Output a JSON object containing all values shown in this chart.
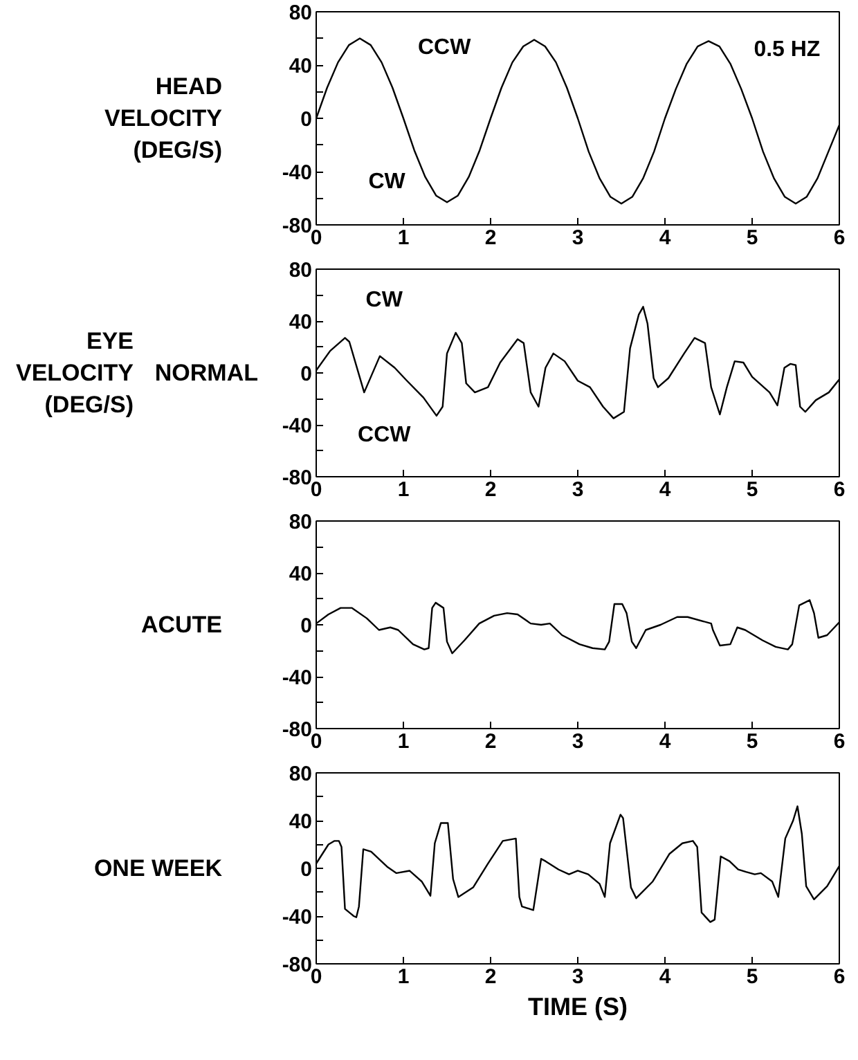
{
  "chart_data": [
    {
      "type": "line",
      "ylabel": "HEAD VELOCITY (DEG/S)",
      "color": "#000000",
      "xlim": [
        0,
        6
      ],
      "ylim": [
        -80,
        80
      ],
      "xticks": [
        0,
        1,
        2,
        3,
        4,
        5,
        6
      ],
      "yticks": [
        -80,
        {
          "value": -60,
          "label": null
        },
        -40,
        {
          "value": -20,
          "label": null
        },
        0,
        {
          "value": 20,
          "label": null
        },
        40,
        {
          "value": 60,
          "label": null
        },
        80
      ],
      "x": [
        0,
        0.125,
        0.25,
        0.375,
        0.5,
        0.625,
        0.75,
        0.875,
        1,
        1.125,
        1.25,
        1.375,
        1.5,
        1.625,
        1.75,
        1.875,
        2,
        2.125,
        2.25,
        2.375,
        2.5,
        2.625,
        2.75,
        2.875,
        3,
        3.125,
        3.25,
        3.375,
        3.5,
        3.625,
        3.75,
        3.875,
        4,
        4.125,
        4.25,
        4.375,
        4.5,
        4.625,
        4.75,
        4.875,
        5,
        5.125,
        5.25,
        5.375,
        5.5,
        5.625,
        5.75,
        5.875,
        6
      ],
      "values": [
        0,
        23,
        42,
        55,
        60,
        55,
        42,
        23,
        0,
        -24,
        -44,
        -58,
        -63,
        -58,
        -44,
        -24,
        0,
        23,
        42,
        54,
        59,
        54,
        42,
        23,
        0,
        -25,
        -45,
        -59,
        -64,
        -59,
        -45,
        -25,
        0,
        22,
        41,
        54,
        58,
        54,
        41,
        22,
        0,
        -25,
        -45,
        -59,
        -64,
        -59,
        -45,
        -25,
        -5
      ],
      "annotations": [
        "CCW",
        "CW",
        "0.5 HZ"
      ]
    },
    {
      "type": "line",
      "ylabel": "EYE VELOCITY (DEG/S)",
      "title": "NORMAL",
      "color": "#000000",
      "xlim": [
        0,
        6
      ],
      "ylim": [
        -80,
        80
      ],
      "xticks": [
        0,
        1,
        2,
        3,
        4,
        5,
        6
      ],
      "yticks": [
        -80,
        {
          "value": -60,
          "label": null
        },
        -40,
        {
          "value": -20,
          "label": null
        },
        0,
        {
          "value": 20,
          "label": null
        },
        40,
        {
          "value": 60,
          "label": null
        },
        80
      ],
      "x": [
        0,
        0.16,
        0.33,
        0.38,
        0.55,
        0.73,
        0.9,
        1.04,
        1.23,
        1.38,
        1.45,
        1.5,
        1.6,
        1.67,
        1.72,
        1.82,
        1.97,
        2.11,
        2.31,
        2.38,
        2.46,
        2.55,
        2.63,
        2.72,
        2.85,
        3.0,
        3.14,
        3.29,
        3.41,
        3.53,
        3.6,
        3.7,
        3.75,
        3.8,
        3.87,
        3.92,
        4.04,
        4.22,
        4.34,
        4.46,
        4.53,
        4.63,
        4.71,
        4.8,
        4.9,
        5.0,
        5.2,
        5.29,
        5.37,
        5.44,
        5.5,
        5.55,
        5.61,
        5.73,
        5.88,
        6
      ],
      "values": [
        2,
        17,
        27,
        24,
        -15,
        13,
        4,
        -6,
        -19,
        -33,
        -26,
        15,
        31,
        23,
        -8,
        -15,
        -11,
        8,
        26,
        23,
        -15,
        -26,
        4,
        15,
        9,
        -6,
        -11,
        -26,
        -35,
        -30,
        19,
        45,
        51,
        38,
        -4,
        -11,
        -4,
        15,
        27,
        23,
        -11,
        -32,
        -11,
        9,
        8,
        -3,
        -15,
        -25,
        4,
        7,
        6,
        -26,
        -30,
        -21,
        -15,
        -5
      ],
      "annotations": [
        "CW",
        "CCW"
      ]
    },
    {
      "type": "line",
      "title": "ACUTE",
      "color": "#000000",
      "xlim": [
        0,
        6
      ],
      "ylim": [
        -80,
        80
      ],
      "xticks": [
        0,
        1,
        2,
        3,
        4,
        5,
        6
      ],
      "yticks": [
        -80,
        {
          "value": -60,
          "label": null
        },
        -40,
        {
          "value": -20,
          "label": null
        },
        0,
        {
          "value": 20,
          "label": null
        },
        40,
        {
          "value": 60,
          "label": null
        },
        80
      ],
      "x": [
        0,
        0.14,
        0.28,
        0.41,
        0.58,
        0.72,
        0.85,
        0.94,
        1.11,
        1.24,
        1.29,
        1.33,
        1.37,
        1.46,
        1.5,
        1.56,
        1.7,
        1.87,
        2.04,
        2.19,
        2.31,
        2.46,
        2.58,
        2.68,
        2.82,
        3.02,
        3.17,
        3.31,
        3.36,
        3.42,
        3.51,
        3.56,
        3.62,
        3.67,
        3.78,
        3.95,
        4.14,
        4.26,
        4.53,
        4.55,
        4.63,
        4.75,
        4.83,
        4.92,
        5.12,
        5.27,
        5.41,
        5.46,
        5.54,
        5.66,
        5.71,
        5.76,
        5.86,
        6
      ],
      "values": [
        1,
        8,
        13,
        13,
        5,
        -4,
        -2,
        -4,
        -15,
        -19,
        -18,
        13,
        17,
        13,
        -13,
        -22,
        -12,
        1,
        7,
        9,
        8,
        1,
        0,
        1,
        -8,
        -15,
        -18,
        -19,
        -13,
        16,
        16,
        9,
        -13,
        -18,
        -4,
        0,
        6,
        6,
        1,
        -4,
        -16,
        -15,
        -2,
        -4,
        -12,
        -17,
        -19,
        -15,
        15,
        19,
        9,
        -10,
        -8,
        2
      ]
    },
    {
      "type": "line",
      "title": "ONE WEEK",
      "xlabel": "TIME (S)",
      "color": "#000000",
      "xlim": [
        0,
        6
      ],
      "ylim": [
        -80,
        80
      ],
      "xticks": [
        0,
        1,
        2,
        3,
        4,
        5,
        6
      ],
      "yticks": [
        -80,
        {
          "value": -60,
          "label": null
        },
        -40,
        {
          "value": -20,
          "label": null
        },
        0,
        {
          "value": 20,
          "label": null
        },
        40,
        {
          "value": 60,
          "label": null
        },
        80
      ],
      "x": [
        0,
        0.14,
        0.21,
        0.26,
        0.29,
        0.33,
        0.43,
        0.46,
        0.49,
        0.54,
        0.63,
        0.82,
        0.92,
        1.07,
        1.21,
        1.31,
        1.36,
        1.43,
        1.51,
        1.57,
        1.63,
        1.8,
        1.97,
        2.14,
        2.29,
        2.33,
        2.36,
        2.49,
        2.58,
        2.63,
        2.78,
        2.9,
        3.0,
        3.12,
        3.25,
        3.31,
        3.37,
        3.49,
        3.52,
        3.61,
        3.67,
        3.86,
        4.05,
        4.2,
        4.32,
        4.37,
        4.42,
        4.52,
        4.57,
        4.64,
        4.74,
        4.84,
        4.93,
        5.03,
        5.1,
        5.23,
        5.3,
        5.38,
        5.47,
        5.52,
        5.57,
        5.62,
        5.71,
        5.86,
        6
      ],
      "values": [
        4,
        20,
        23,
        23,
        18,
        -34,
        -40,
        -41,
        -32,
        16,
        14,
        1,
        -4,
        -2,
        -11,
        -23,
        21,
        38,
        38,
        -9,
        -24,
        -16,
        4,
        23,
        25,
        -24,
        -32,
        -35,
        8,
        6,
        -1,
        -5,
        -2,
        -5,
        -13,
        -24,
        21,
        45,
        42,
        -16,
        -25,
        -11,
        12,
        21,
        23,
        18,
        -37,
        -45,
        -43,
        10,
        6,
        -1,
        -3,
        -5,
        -4,
        -11,
        -24,
        25,
        40,
        52,
        29,
        -15,
        -26,
        -15,
        2
      ]
    }
  ]
}
